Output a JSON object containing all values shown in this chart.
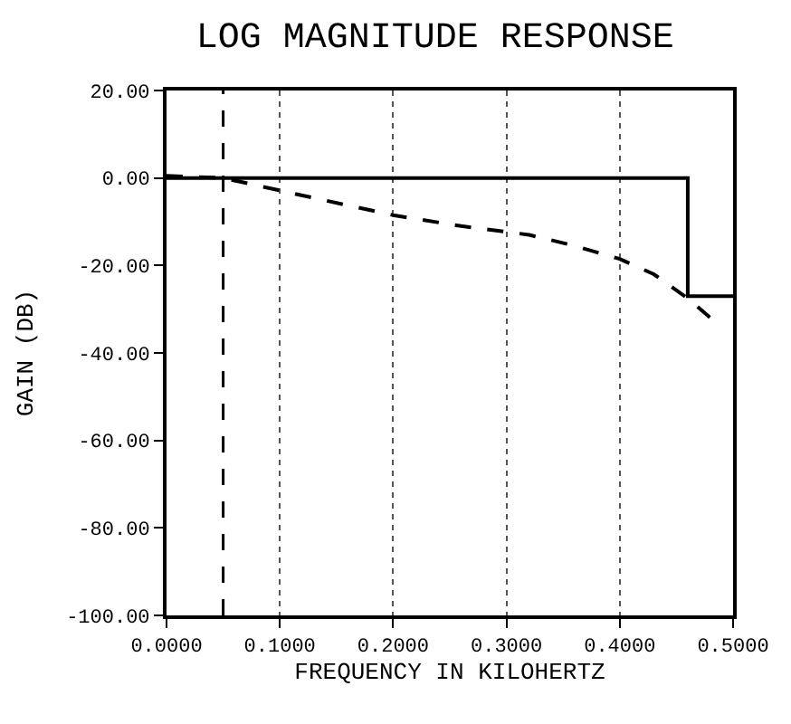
{
  "chart_data": {
    "type": "line",
    "title": "LOG MAGNITUDE RESPONSE",
    "xlabel": "FREQUENCY IN KILOHERTZ",
    "ylabel": "GAIN (DB)",
    "xlim": [
      0,
      0.5
    ],
    "ylim": [
      -100,
      20
    ],
    "xticks": [
      {
        "value": 0,
        "label": "0.0000"
      },
      {
        "value": 0.1,
        "label": "0.1000"
      },
      {
        "value": 0.2,
        "label": "0.2000"
      },
      {
        "value": 0.3,
        "label": "0.3000"
      },
      {
        "value": 0.4,
        "label": "0.4000"
      },
      {
        "value": 0.5,
        "label": "0.5000"
      }
    ],
    "yticks": [
      {
        "value": 20,
        "label": "20.00"
      },
      {
        "value": 0,
        "label": "0.00"
      },
      {
        "value": -20,
        "label": "-20.00"
      },
      {
        "value": -40,
        "label": "-40.00"
      },
      {
        "value": -60,
        "label": "-60.00"
      },
      {
        "value": -80,
        "label": "-80.00"
      },
      {
        "value": -100,
        "label": "-100.00"
      }
    ],
    "grid": "x",
    "marker": "none",
    "series": [
      {
        "color": "#000000",
        "line_style": "solid",
        "x": [
          0,
          0.46,
          0.46,
          0.5
        ],
        "values": [
          0,
          0,
          -27,
          -27
        ]
      },
      {
        "color": "#000000",
        "line_style": "dashed",
        "x": [
          0,
          0.05,
          0.12,
          0.2,
          0.26,
          0.32,
          0.36,
          0.4,
          0.43,
          0.46,
          0.48
        ],
        "values": [
          0.5,
          0,
          -4,
          -8.5,
          -11,
          -13,
          -15.5,
          -18.5,
          -22,
          -27.5,
          -32
        ]
      }
    ],
    "ref_lines": [
      {
        "axis": "x",
        "value": 0.05,
        "color": "#000000",
        "line_style": "dashed"
      }
    ]
  }
}
